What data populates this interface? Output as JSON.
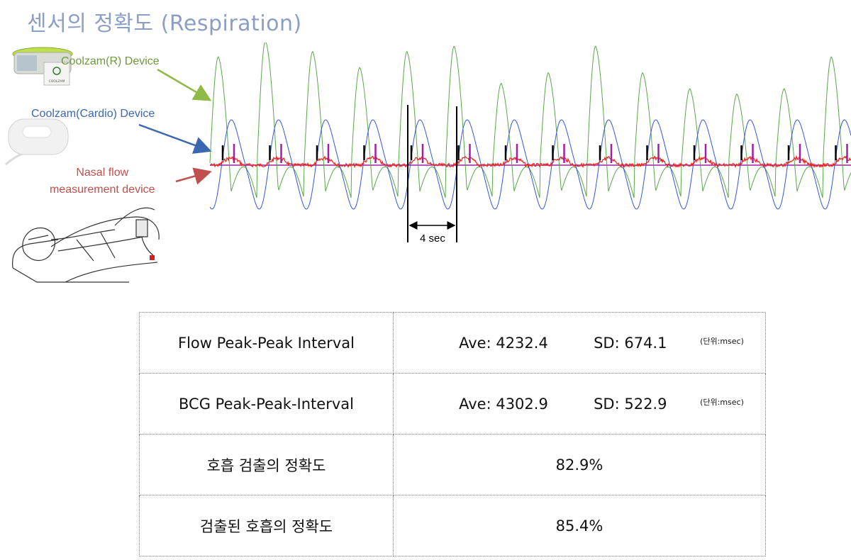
{
  "title": "센서의 정확도 (Respiration)",
  "labels": {
    "coolzam_r": "Coolzam(R) Device",
    "coolzam_cardio": "Coolzam(Cardio) Device",
    "nasal_line1": "Nasal flow",
    "nasal_line2": "measurement device"
  },
  "device_text": {
    "band_brand": "COOLZAM"
  },
  "chart": {
    "scale_label": "4 sec",
    "colors": {
      "green": "#5aa64a",
      "blue": "#3355dd",
      "red": "#e8231f",
      "magenta": "#a020a0",
      "black": "#000000"
    }
  },
  "table": {
    "rows": [
      {
        "label": "Flow Peak-Peak Interval",
        "ave": "Ave: 4232.4",
        "sd": "SD: 674.1",
        "unit": "(단위:msec)"
      },
      {
        "label": "BCG Peak-Peak-Interval",
        "ave": "Ave: 4302.9",
        "sd": "SD: 522.9",
        "unit": "(단위:msec)"
      },
      {
        "label": "호흡 검출의 정확도",
        "value": "82.9%"
      },
      {
        "label": "검출된 호흡의 정확도",
        "value": "85.4%"
      }
    ]
  }
}
